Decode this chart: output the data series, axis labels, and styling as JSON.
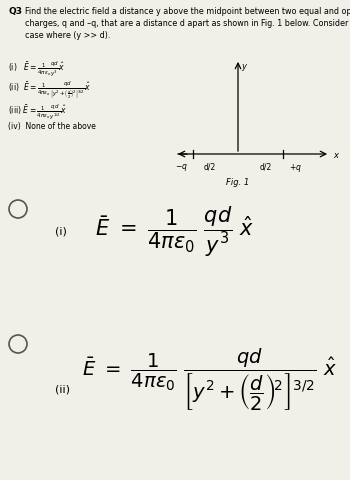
{
  "bg_color": "#f0efe8",
  "text_color": "#000000",
  "fig_size": [
    3.5,
    4.81
  ],
  "dpi": 100,
  "fig1_label": "Fig. 1",
  "q3_bold": "Q3",
  "q3_text": "Find the electric field a distance y above the midpoint between two equal and opposite\ncharges, q and –q, that are a distance d apart as shown in Fig. 1 below. Consider ONLY\ncase where (y >> d).",
  "opt_i": "(i)   $\\bar{E} = \\frac{1}{4\\pi\\varepsilon_o}\\frac{qd}{y^3}\\hat{x}$",
  "opt_ii": "(ii)  $\\bar{E} = \\frac{1}{4\\pi\\varepsilon_o}\\frac{qd}{\\left[y^2+\\left(\\frac{d}{2}\\right)^2\\right]^{3/2}}\\hat{x}$",
  "opt_iii": "(iii) $\\bar{E} = \\frac{1}{4\\pi\\varepsilon_o}\\frac{qd}{y^{1/2}}\\hat{x}$",
  "opt_iv": "(iv)  None of the above",
  "circle_color": "#808080",
  "answer_i_label": "(i)",
  "answer_ii_label": "(ii)"
}
